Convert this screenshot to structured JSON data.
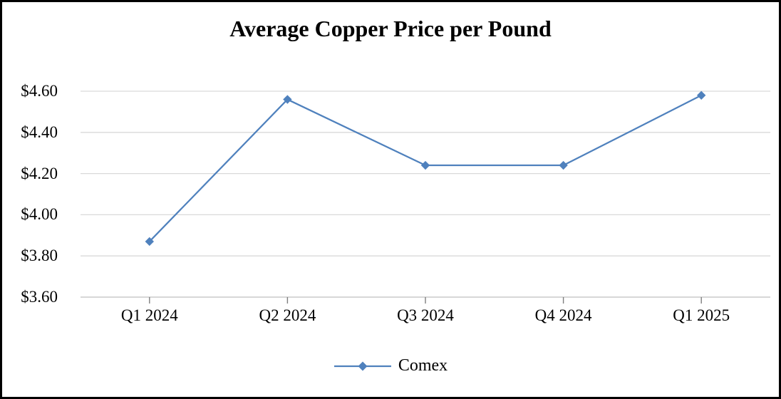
{
  "chart_data": {
    "type": "line",
    "title": "Average Copper Price per Pound",
    "categories": [
      "Q1 2024",
      "Q2 2024",
      "Q3 2024",
      "Q4 2024",
      "Q1 2025"
    ],
    "series": [
      {
        "name": "Comex",
        "values": [
          3.87,
          4.56,
          4.24,
          4.24,
          4.58
        ],
        "color": "#4F81BD",
        "marker": "diamond"
      }
    ],
    "xlabel": "",
    "ylabel": "",
    "y_axis": {
      "min": 3.6,
      "max": 4.6,
      "tick_interval": 0.2,
      "tick_labels": [
        "$4.60",
        "$4.40",
        "$4.20",
        "$4.00",
        "$3.80",
        "$3.60"
      ],
      "tick_format": "currency"
    },
    "grid": true,
    "legend_position": "bottom",
    "colors": {
      "line": "#4F81BD",
      "gridline": "#D9D9D9",
      "axis_line": "#BFBFBF",
      "tick_mark": "#7F7F7F",
      "text": "#000000",
      "background": "#FFFFFF",
      "frame_border": "#000000"
    }
  }
}
